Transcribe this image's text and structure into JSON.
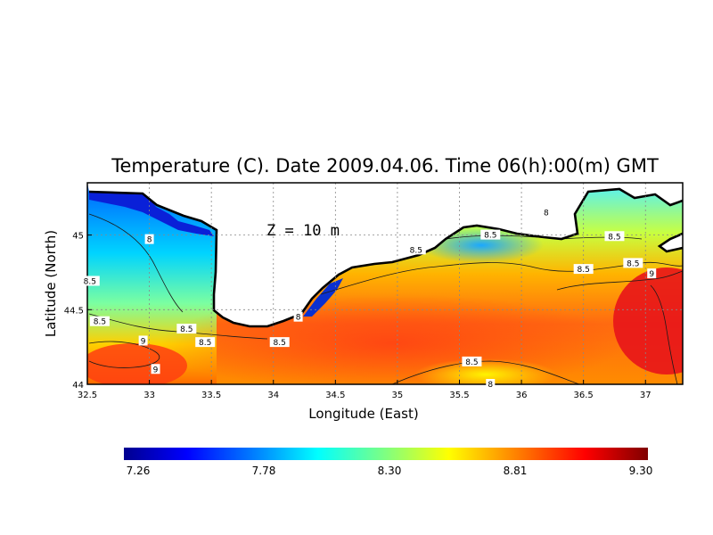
{
  "chart_data": {
    "type": "heatmap",
    "title": "Temperature (C). Date 2009.04.06. Time 06(h):00(m) GMT",
    "annotation": "Z = 10 m",
    "xlabel": "Longitude (East)",
    "ylabel": "Latitude (North)",
    "xlim": [
      32.5,
      37.3
    ],
    "ylim": [
      44.0,
      45.35
    ],
    "x_ticks": [
      "32.5",
      "33",
      "33.5",
      "34",
      "34.5",
      "35",
      "35.5",
      "36",
      "36.5",
      "37"
    ],
    "y_ticks": [
      "44",
      "44.5",
      "45"
    ],
    "grid": true,
    "colorbar": {
      "min": 7.26,
      "max": 9.3,
      "tick_labels": [
        "7.26",
        "7.78",
        "8.30",
        "8.81",
        "9.30"
      ],
      "colors": [
        "#00008f",
        "#0000ff",
        "#0080ff",
        "#00ffff",
        "#80ff80",
        "#ffff00",
        "#ff8000",
        "#ff0000",
        "#800000"
      ]
    },
    "contour_labels": [
      {
        "text": "8",
        "lon": 33.0,
        "lat": 44.97
      },
      {
        "text": "8.5",
        "lon": 32.52,
        "lat": 44.69
      },
      {
        "text": "8.5",
        "lon": 32.6,
        "lat": 44.42
      },
      {
        "text": "8.5",
        "lon": 33.3,
        "lat": 44.37
      },
      {
        "text": "8.5",
        "lon": 33.45,
        "lat": 44.28
      },
      {
        "text": "8.5",
        "lon": 34.05,
        "lat": 44.28
      },
      {
        "text": "8",
        "lon": 34.2,
        "lat": 44.45
      },
      {
        "text": "8.5",
        "lon": 35.15,
        "lat": 44.9
      },
      {
        "text": "8.5",
        "lon": 35.75,
        "lat": 45.0
      },
      {
        "text": "8",
        "lon": 36.2,
        "lat": 45.15
      },
      {
        "text": "8.5",
        "lon": 36.75,
        "lat": 44.99
      },
      {
        "text": "8.5",
        "lon": 36.5,
        "lat": 44.77
      },
      {
        "text": "8.5",
        "lon": 36.9,
        "lat": 44.81
      },
      {
        "text": "9",
        "lon": 37.05,
        "lat": 44.74
      },
      {
        "text": "9",
        "lon": 32.95,
        "lat": 44.29
      },
      {
        "text": "9",
        "lon": 33.05,
        "lat": 44.1
      },
      {
        "text": "8.5",
        "lon": 35.6,
        "lat": 44.15
      },
      {
        "text": "8",
        "lon": 35.75,
        "lat": 44.0
      }
    ]
  }
}
